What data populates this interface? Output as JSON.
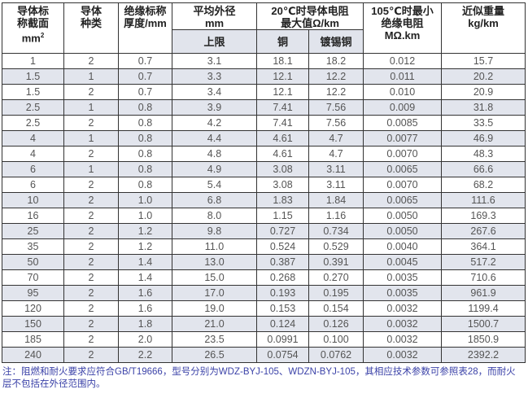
{
  "headers": {
    "size": [
      "导体标",
      "称截面",
      "mm",
      "2"
    ],
    "type": [
      "导体",
      "种类"
    ],
    "insulation": [
      "绝缘标称",
      "厚度/mm"
    ],
    "diameter": [
      "平均外径",
      "mm"
    ],
    "diameter_sub": "上限",
    "resistance": [
      "20℃时导体电阻",
      "最大值Ω/km"
    ],
    "res_copper": "铜",
    "res_tinned": "镀锡铜",
    "ins_res": [
      "105℃时最小",
      "绝缘电阻",
      "MΩ.km"
    ],
    "weight": [
      "近似重量",
      "kg/km"
    ]
  },
  "rows": [
    [
      "1",
      "2",
      "0.7",
      "3.1",
      "18.1",
      "18.2",
      "0.012",
      "15.7"
    ],
    [
      "1.5",
      "1",
      "0.7",
      "3.3",
      "12.1",
      "12.2",
      "0.011",
      "20.2"
    ],
    [
      "1.5",
      "2",
      "0.7",
      "3.4",
      "12.1",
      "12.2",
      "0.010",
      "20.9"
    ],
    [
      "2.5",
      "1",
      "0.8",
      "3.9",
      "7.41",
      "7.56",
      "0.009",
      "31.8"
    ],
    [
      "2.5",
      "2",
      "0.8",
      "4.2",
      "7.41",
      "7.56",
      "0.0085",
      "33.5"
    ],
    [
      "4",
      "1",
      "0.8",
      "4.4",
      "4.61",
      "4.7",
      "0.0077",
      "46.9"
    ],
    [
      "4",
      "2",
      "0.8",
      "4.8",
      "4.61",
      "4.7",
      "0.0070",
      "48.3"
    ],
    [
      "6",
      "1",
      "0.8",
      "4.9",
      "3.08",
      "3.11",
      "0.0065",
      "66.6"
    ],
    [
      "6",
      "2",
      "0.8",
      "5.4",
      "3.08",
      "3.11",
      "0.0070",
      "68.2"
    ],
    [
      "10",
      "2",
      "1.0",
      "6.8",
      "1.83",
      "1.84",
      "0.0065",
      "111.6"
    ],
    [
      "16",
      "2",
      "1.0",
      "8.0",
      "1.15",
      "1.16",
      "0.0050",
      "169.3"
    ],
    [
      "25",
      "2",
      "1.2",
      "9.8",
      "0.727",
      "0.734",
      "0.0050",
      "267.6"
    ],
    [
      "35",
      "2",
      "1.2",
      "11.0",
      "0.524",
      "0.529",
      "0.0040",
      "364.1"
    ],
    [
      "50",
      "2",
      "1.4",
      "13.0",
      "0.387",
      "0.391",
      "0.0045",
      "517.2"
    ],
    [
      "70",
      "2",
      "1.4",
      "15.0",
      "0.268",
      "0.270",
      "0.0035",
      "710.6"
    ],
    [
      "95",
      "2",
      "1.6",
      "17.0",
      "0.193",
      "0.195",
      "0.0035",
      "961.9"
    ],
    [
      "120",
      "2",
      "1.6",
      "19.0",
      "0.153",
      "0.154",
      "0.0032",
      "1199.4"
    ],
    [
      "150",
      "2",
      "1.8",
      "21.0",
      "0.124",
      "0.126",
      "0.0032",
      "1500.7"
    ],
    [
      "185",
      "2",
      "2.0",
      "23.5",
      "0.0991",
      "0.100",
      "0.0032",
      "1850.9"
    ],
    [
      "240",
      "2",
      "2.2",
      "26.5",
      "0.0754",
      "0.0762",
      "0.0032",
      "2392.2"
    ]
  ],
  "note": "注：阻燃和耐火要求应符合GB/T19666，型号分别为WDZ-BYJ-105、WDZN-BYJ-105，其相应技术参数可参照表28，而耐火层不包括在外径范围内。",
  "colors": {
    "row_alt": "#e2e5ed",
    "note_text": "#3b42a8"
  }
}
